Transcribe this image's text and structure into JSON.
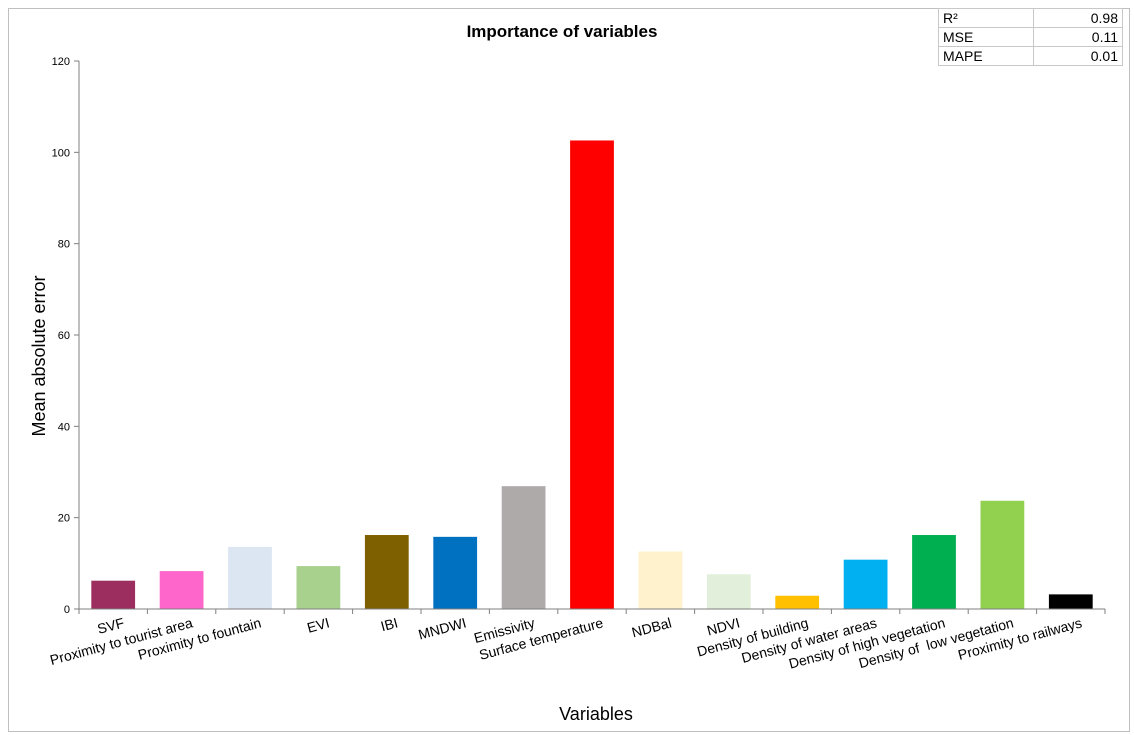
{
  "chart_data": {
    "type": "bar",
    "title": "Importance of variables",
    "xlabel": "Variables",
    "ylabel": "Mean absolute error",
    "ylim": [
      0,
      120
    ],
    "yticks": [
      0,
      20,
      40,
      60,
      80,
      100,
      120
    ],
    "grid": false,
    "categories": [
      "SVF",
      "Proximity to tourist area",
      "Proximity to fountain",
      "EVI",
      "IBI",
      "MNDWI",
      "Emissivity",
      "Surface temperature",
      "NDBal",
      "NDVI",
      "Density of building",
      "Density of water areas",
      "Density of high vegetation",
      "Density of  low vegetation",
      "Proximity to railways"
    ],
    "values": [
      6.2,
      8.3,
      13.6,
      9.4,
      16.2,
      15.8,
      26.9,
      102.6,
      12.6,
      7.6,
      2.9,
      10.8,
      16.2,
      23.7,
      3.2
    ],
    "colors": [
      "#9B2D5F",
      "#FF66CC",
      "#DCE6F2",
      "#A9D18E",
      "#7F6000",
      "#0070C0",
      "#AEAAAA",
      "#FF0000",
      "#FFF2CC",
      "#E2EFDA",
      "#FFC000",
      "#00B0F0",
      "#00B050",
      "#92D050",
      "#000000"
    ]
  },
  "metrics": [
    {
      "name": "R²",
      "value": "0.98"
    },
    {
      "name": "MSE",
      "value": "0.11"
    },
    {
      "name": "MAPE",
      "value": "0.01"
    }
  ]
}
